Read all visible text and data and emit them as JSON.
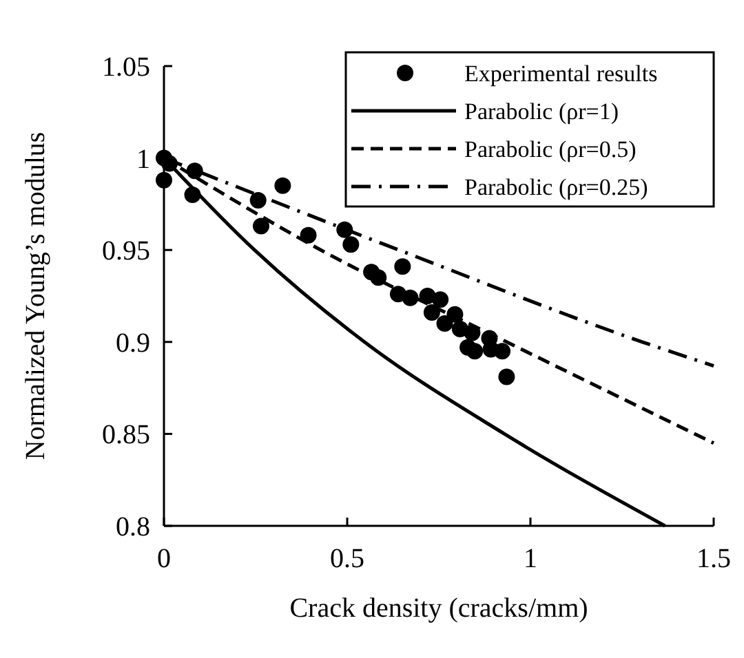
{
  "chart_data": {
    "type": "scatter",
    "xlabel": "Crack density (cracks/mm)",
    "ylabel": "Normalized Young’s modulus",
    "xlim": [
      0,
      1.5
    ],
    "ylim": [
      0.8,
      1.05
    ],
    "xticks": [
      0,
      0.5,
      1,
      1.5
    ],
    "yticks": [
      0.8,
      0.85,
      0.9,
      0.95,
      1,
      1.05
    ],
    "grid": false,
    "legend": "top right",
    "series": [
      {
        "name": "Experimental results",
        "marker": "circle",
        "color": "#000000",
        "x": [
          0,
          0,
          0.015,
          0.084,
          0.078,
          0.257,
          0.265,
          0.324,
          0.394,
          0.493,
          0.51,
          0.566,
          0.585,
          0.651,
          0.639,
          0.672,
          0.719,
          0.754,
          0.731,
          0.766,
          0.794,
          0.808,
          0.841,
          0.829,
          0.848,
          0.888,
          0.892,
          0.923,
          0.935
        ],
        "values": [
          1,
          0.988,
          0.997,
          0.993,
          0.98,
          0.977,
          0.963,
          0.985,
          0.958,
          0.961,
          0.953,
          0.938,
          0.935,
          0.941,
          0.926,
          0.924,
          0.925,
          0.923,
          0.916,
          0.91,
          0.915,
          0.907,
          0.905,
          0.897,
          0.895,
          0.902,
          0.896,
          0.895,
          0.881
        ]
      },
      {
        "name": "Parabolic (ρr=1)",
        "type": "line",
        "line_style": "solid",
        "color": "#000000",
        "x": [
          0,
          0.247,
          0.547,
          0.929,
          1.367
        ],
        "values": [
          1,
          0.95,
          0.9,
          0.85,
          0.8
        ]
      },
      {
        "name": "Parabolic (ρr=0.5)",
        "type": "line",
        "line_style": "dashed",
        "color": "#000000",
        "x": [
          0,
          0.428,
          0.935,
          1.5
        ],
        "values": [
          1,
          0.95,
          0.9,
          0.845
        ]
      },
      {
        "name": "Parabolic (ρr=0.25)",
        "type": "line",
        "line_style": "dashdot",
        "color": "#000000",
        "x": [
          0,
          0.641,
          1.305,
          1.5
        ],
        "values": [
          1,
          0.95,
          0.9,
          0.887
        ]
      }
    ]
  }
}
